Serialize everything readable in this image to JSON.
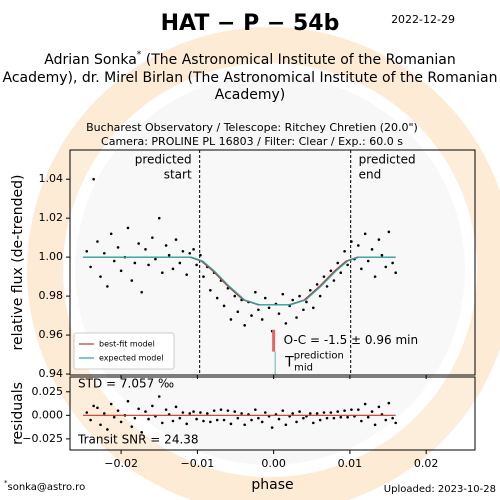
{
  "header": {
    "title": "HAT − P − 54b",
    "date": "2022-12-29",
    "authors": [
      "Adrian Sonka",
      "*",
      " (The Astronomical Institute of the Romanian",
      "Academy), dr. Mirel Birlan (The Astronomical Institute of the Romanian",
      "Academy)"
    ],
    "subtitle": [
      "Bucharest Observatory / Telescope: Ritchey Chretien (20.0\")",
      "Camera: PROLINE PL 16803 / Filter: Clear / Exp.: 60.0 s"
    ]
  },
  "footer": {
    "contact_mark": "*",
    "contact": "sonka@astro.ro",
    "uploaded": "Uploaded: 2023-10-28"
  },
  "chart_data": [
    {
      "type": "scatter",
      "ylabel": "relative flux (de-trended)",
      "xlim": [
        -0.0267,
        0.0264
      ],
      "ylim": [
        0.9395,
        1.055
      ],
      "yticks": [
        {
          "value": 1.04,
          "label": "1.04"
        },
        {
          "value": 1.02,
          "label": "1.02"
        },
        {
          "value": 1.0,
          "label": "1.00"
        },
        0.98,
        0.96,
        0.94
      ],
      "vlines": [
        {
          "x": -0.0097,
          "label": [
            "predicted",
            "start"
          ]
        },
        {
          "x": 0.0101,
          "label": [
            "predicted",
            "end"
          ]
        }
      ],
      "legend": "lower left",
      "oc_bar": {
        "x": 0.0,
        "y": [
          0.9515,
          0.9627
        ],
        "color": "#e06666"
      },
      "oc_label": "O-C = -1.5 ± 0.96 min",
      "tmid": {
        "x": 0.0002,
        "y": [
          0.9395,
          0.9515
        ],
        "color": "#5fb8b8",
        "label": "T",
        "sub": "mid",
        "sup": "prediction"
      },
      "series": [
        {
          "mode": "markers",
          "color": "#000000",
          "x": [
            -0.0245,
            -0.024,
            -0.0236,
            -0.0231,
            -0.0227,
            -0.0222,
            -0.0218,
            -0.0213,
            -0.0209,
            -0.0204,
            -0.02,
            -0.0195,
            -0.0191,
            -0.0186,
            -0.0182,
            -0.0177,
            -0.0173,
            -0.0168,
            -0.0164,
            -0.0159,
            -0.0155,
            -0.015,
            -0.0146,
            -0.0141,
            -0.0137,
            -0.0132,
            -0.0128,
            -0.0123,
            -0.0119,
            -0.0114,
            -0.011,
            -0.0105,
            -0.0101,
            -0.0096,
            -0.0092,
            -0.0087,
            -0.0083,
            -0.0078,
            -0.0074,
            -0.0069,
            -0.0065,
            -0.006,
            -0.0056,
            -0.0051,
            -0.0047,
            -0.0042,
            -0.0038,
            -0.0033,
            -0.0029,
            -0.0024,
            -0.002,
            -0.0015,
            -0.0011,
            -0.0006,
            -0.0002,
            0.0003,
            0.0007,
            0.0012,
            0.0016,
            0.0021,
            0.0025,
            0.003,
            0.0034,
            0.0039,
            0.0043,
            0.0048,
            0.0052,
            0.0057,
            0.0061,
            0.0066,
            0.007,
            0.0075,
            0.0079,
            0.0084,
            0.0088,
            0.0093,
            0.0097,
            0.0102,
            0.0106,
            0.0111,
            0.0115,
            0.012,
            0.0124,
            0.0129,
            0.0133,
            0.0138,
            0.0142,
            0.0147,
            0.0151,
            0.0156,
            0.016
          ],
          "values": [
            1.003,
            0.995,
            1.04,
            1.008,
            0.99,
            1.002,
            0.985,
            1.012,
            0.998,
            1.005,
            0.993,
            1.0,
            1.015,
            0.988,
            0.997,
            1.007,
            0.982,
            1.004,
            0.996,
            1.01,
            0.999,
            1.02,
            0.992,
            1.006,
            1.001,
            0.994,
            1.009,
            0.997,
            1.003,
            0.991,
            1.002,
            1.004,
            0.996,
            1.001,
            0.99,
            0.995,
            0.983,
            0.992,
            0.979,
            0.988,
            0.975,
            0.984,
            0.968,
            0.98,
            0.972,
            0.978,
            0.965,
            0.977,
            0.97,
            0.982,
            0.973,
            0.968,
            0.979,
            0.974,
            0.962,
            0.976,
            0.971,
            0.981,
            0.966,
            0.975,
            0.978,
            0.969,
            0.98,
            0.973,
            0.977,
            0.983,
            0.974,
            0.986,
            0.98,
            0.99,
            0.985,
            0.993,
            0.988,
            0.997,
            0.992,
            1.003,
            0.996,
            1.008,
            0.999,
            1.006,
            0.994,
            1.012,
            0.998,
            1.004,
            0.99,
            1.009,
            1.001,
            0.995,
            1.013,
            0.997,
            0.992
          ]
        },
        {
          "mode": "line",
          "name": "best-fit model",
          "color": "#c0392b",
          "x": [
            -0.025,
            -0.011,
            -0.0095,
            -0.008,
            -0.006,
            -0.004,
            -0.002,
            0.002,
            0.004,
            0.006,
            0.008,
            0.0095,
            0.011,
            0.016
          ],
          "values": [
            1.0,
            1.0,
            0.998,
            0.993,
            0.985,
            0.978,
            0.9755,
            0.9755,
            0.978,
            0.985,
            0.993,
            0.998,
            1.0,
            1.0
          ]
        },
        {
          "mode": "line",
          "name": "expected model",
          "color": "#20a8a8",
          "x": [
            -0.025,
            -0.0108,
            -0.0093,
            -0.0078,
            -0.0058,
            -0.0038,
            -0.0018,
            0.0022,
            0.0042,
            0.0062,
            0.0082,
            0.0097,
            0.0112,
            0.016
          ],
          "values": [
            1.0,
            1.0,
            0.998,
            0.993,
            0.985,
            0.978,
            0.9755,
            0.9755,
            0.978,
            0.985,
            0.993,
            0.998,
            1.0,
            1.0
          ]
        }
      ]
    },
    {
      "type": "scatter",
      "ylabel": "residuals",
      "xlim": [
        -0.0267,
        0.0264
      ],
      "ylim": [
        -0.0368,
        0.0407
      ],
      "yticks": [
        {
          "value": 0.025,
          "label": "0.025"
        },
        {
          "value": 0.0,
          "label": "0.000"
        },
        {
          "value": -0.025,
          "label": "−0.025"
        }
      ],
      "xticks": [
        {
          "value": -0.02,
          "label": "−0.02"
        },
        {
          "value": -0.01,
          "label": "−0.01"
        },
        {
          "value": 0.0,
          "label": "0.00"
        },
        0.01,
        0.02
      ],
      "xlabel": "phase",
      "std_label": "STD = 7.057 ‰",
      "snr_label": "Transit SNR = 24.38",
      "series": [
        {
          "mode": "markers",
          "color": "#000000",
          "x": [
            -0.0245,
            -0.024,
            -0.0236,
            -0.0231,
            -0.0227,
            -0.0222,
            -0.0218,
            -0.0213,
            -0.0209,
            -0.0204,
            -0.02,
            -0.0195,
            -0.0191,
            -0.0186,
            -0.0182,
            -0.0177,
            -0.0173,
            -0.0168,
            -0.0164,
            -0.0159,
            -0.0155,
            -0.015,
            -0.0146,
            -0.0141,
            -0.0137,
            -0.0132,
            -0.0128,
            -0.0123,
            -0.0119,
            -0.0114,
            -0.011,
            -0.0105,
            -0.0101,
            -0.0096,
            -0.0092,
            -0.0087,
            -0.0083,
            -0.0078,
            -0.0074,
            -0.0069,
            -0.0065,
            -0.006,
            -0.0056,
            -0.0051,
            -0.0047,
            -0.0042,
            -0.0038,
            -0.0033,
            -0.0029,
            -0.0024,
            -0.002,
            -0.0015,
            -0.0011,
            -0.0006,
            -0.0002,
            0.0003,
            0.0007,
            0.0012,
            0.0016,
            0.0021,
            0.0025,
            0.003,
            0.0034,
            0.0039,
            0.0043,
            0.0048,
            0.0052,
            0.0057,
            0.0061,
            0.0066,
            0.007,
            0.0075,
            0.0079,
            0.0084,
            0.0088,
            0.0093,
            0.0097,
            0.0102,
            0.0106,
            0.0111,
            0.0115,
            0.012,
            0.0124,
            0.0129,
            0.0133,
            0.0138,
            0.0142,
            0.0147,
            0.0151,
            0.0156,
            0.016
          ],
          "values": [
            0.003,
            -0.005,
            0.01,
            0.008,
            -0.01,
            0.002,
            -0.015,
            0.012,
            -0.002,
            0.005,
            -0.007,
            0,
            0.015,
            -0.012,
            -0.003,
            0.007,
            -0.018,
            0.004,
            -0.004,
            0.01,
            -0.001,
            0.02,
            -0.008,
            0.006,
            0.001,
            -0.006,
            0.009,
            -0.003,
            0.003,
            -0.009,
            0.002,
            0.004,
            -0.004,
            0.003,
            -0.006,
            0.002,
            -0.007,
            0.005,
            -0.005,
            0.006,
            -0.005,
            0.005,
            -0.009,
            0.004,
            -0.003,
            0.002,
            -0.01,
            0.001,
            -0.005,
            0.006,
            -0.003,
            -0.007,
            0.003,
            -0.001,
            -0.013,
            0.001,
            -0.004,
            0.005,
            -0.01,
            -0.001,
            0.002,
            -0.007,
            0.004,
            -0.003,
            -0.001,
            0.002,
            -0.008,
            0.002,
            -0.005,
            0.003,
            -0.003,
            0.003,
            -0.003,
            0.004,
            -0.002,
            0.005,
            -0.002,
            0.006,
            -0.001,
            0.006,
            -0.006,
            0.012,
            -0.002,
            0.004,
            -0.01,
            0.009,
            0.001,
            -0.005,
            0.013,
            -0.003,
            -0.008
          ]
        },
        {
          "mode": "line",
          "color": "#c0392b",
          "x": [
            -0.025,
            0.016
          ],
          "values": [
            0,
            0
          ]
        }
      ]
    }
  ]
}
